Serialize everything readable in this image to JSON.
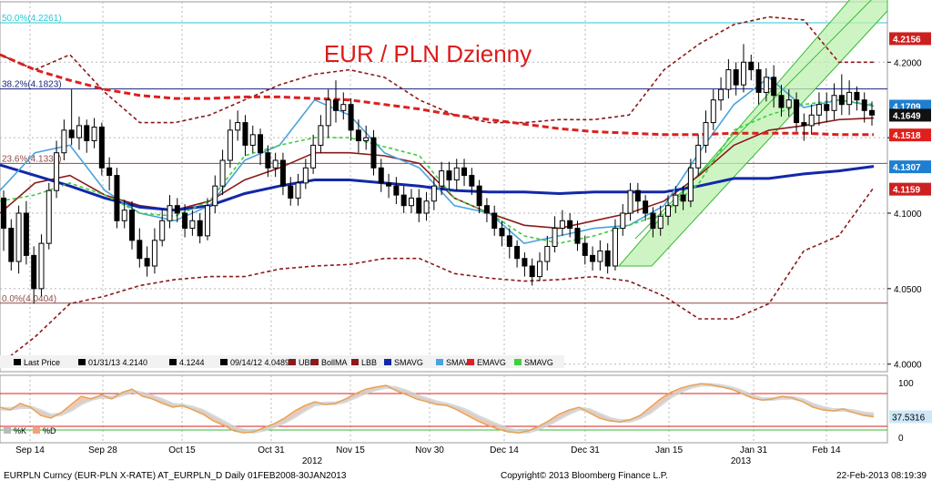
{
  "chart_data": {
    "type": "candlestick",
    "title": "EUR / PLN Dzienny",
    "ylim": [
      3.995,
      4.24
    ],
    "x_ticks": [
      "Sep 14",
      "Sep 28",
      "Oct 15",
      "Oct 31",
      "Nov 15",
      "Nov 30",
      "Dec 14",
      "Dec 31",
      "Jan 15",
      "Jan 31",
      "Feb 14"
    ],
    "year_labels": [
      "2012",
      "2013"
    ],
    "y_ticks": [
      "4.2000",
      "4.1500",
      "4.1000",
      "4.0500",
      "4.0000"
    ],
    "badges": [
      {
        "value": "4.2156",
        "color": "#cc2020"
      },
      {
        "value": "4.1709",
        "color": "#1e7fd0"
      },
      {
        "value": "4.1649",
        "color": "#111111"
      },
      {
        "value": "4.1518",
        "color": "#e0201c"
      },
      {
        "value": "4.1307",
        "color": "#1e7fd0"
      },
      {
        "value": "4.1159",
        "color": "#cc2020"
      }
    ],
    "fib_levels": [
      {
        "label": "50.0%(4.2261)",
        "value": 4.2261,
        "color": "#28c8d8"
      },
      {
        "label": "38.2%(4.1823)",
        "value": 4.1823,
        "color": "#1a237e"
      },
      {
        "label": "23.6%(4.1330)",
        "value": 4.133,
        "color": "#8f4a4a"
      },
      {
        "label": "0.0%(4.0404)",
        "value": 4.0404,
        "color": "#8f4a4a"
      }
    ],
    "candles": [
      [
        4.11,
        4.09,
        4.115,
        4.075
      ],
      [
        4.09,
        4.068,
        4.096,
        4.062
      ],
      [
        4.068,
        4.1,
        4.105,
        4.06
      ],
      [
        4.1,
        4.072,
        4.108,
        4.066
      ],
      [
        4.072,
        4.05,
        4.078,
        4.04
      ],
      [
        4.05,
        4.08,
        4.086,
        4.045
      ],
      [
        4.08,
        4.115,
        4.12,
        4.076
      ],
      [
        4.115,
        4.14,
        4.148,
        4.11
      ],
      [
        4.14,
        4.155,
        4.162,
        4.135
      ],
      [
        4.155,
        4.15,
        4.182,
        4.145
      ],
      [
        4.15,
        4.158,
        4.164,
        4.142
      ],
      [
        4.158,
        4.148,
        4.162,
        4.14
      ],
      [
        4.148,
        4.157,
        4.163,
        4.143
      ],
      [
        4.157,
        4.13,
        4.16,
        4.125
      ],
      [
        4.13,
        4.125,
        4.137,
        4.115
      ],
      [
        4.125,
        4.095,
        4.13,
        4.09
      ],
      [
        4.095,
        4.102,
        4.109,
        4.09
      ],
      [
        4.102,
        4.082,
        4.108,
        4.076
      ],
      [
        4.082,
        4.07,
        4.09,
        4.064
      ],
      [
        4.07,
        4.065,
        4.078,
        4.058
      ],
      [
        4.065,
        4.082,
        4.09,
        4.06
      ],
      [
        4.082,
        4.095,
        4.102,
        4.078
      ],
      [
        4.095,
        4.105,
        4.112,
        4.09
      ],
      [
        4.105,
        4.1,
        4.11,
        4.094
      ],
      [
        4.1,
        4.09,
        4.106,
        4.084
      ],
      [
        4.09,
        4.095,
        4.102,
        4.085
      ],
      [
        4.095,
        4.085,
        4.1,
        4.08
      ],
      [
        4.085,
        4.105,
        4.11,
        4.082
      ],
      [
        4.105,
        4.118,
        4.125,
        4.1
      ],
      [
        4.118,
        4.135,
        4.142,
        4.112
      ],
      [
        4.135,
        4.155,
        4.162,
        4.13
      ],
      [
        4.155,
        4.16,
        4.168,
        4.148
      ],
      [
        4.16,
        4.145,
        4.165,
        4.138
      ],
      [
        4.145,
        4.152,
        4.158,
        4.14
      ],
      [
        4.152,
        4.14,
        4.156,
        4.132
      ],
      [
        4.14,
        4.13,
        4.145,
        4.124
      ],
      [
        4.13,
        4.135,
        4.14,
        4.124
      ],
      [
        4.135,
        4.118,
        4.14,
        4.112
      ],
      [
        4.118,
        4.11,
        4.124,
        4.105
      ],
      [
        4.11,
        4.12,
        4.126,
        4.105
      ],
      [
        4.12,
        4.13,
        4.136,
        4.116
      ],
      [
        4.13,
        4.145,
        4.152,
        4.126
      ],
      [
        4.145,
        4.158,
        4.165,
        4.14
      ],
      [
        4.158,
        4.175,
        4.182,
        4.15
      ],
      [
        4.175,
        4.168,
        4.188,
        4.16
      ],
      [
        4.168,
        4.172,
        4.18,
        4.162
      ],
      [
        4.172,
        4.155,
        4.176,
        4.148
      ],
      [
        4.155,
        4.148,
        4.162,
        4.14
      ],
      [
        4.148,
        4.15,
        4.158,
        4.142
      ],
      [
        4.15,
        4.13,
        4.155,
        4.125
      ],
      [
        4.13,
        4.12,
        4.136,
        4.114
      ],
      [
        4.12,
        4.118,
        4.126,
        4.11
      ],
      [
        4.118,
        4.112,
        4.124,
        4.106
      ],
      [
        4.112,
        4.105,
        4.118,
        4.1
      ],
      [
        4.105,
        4.11,
        4.116,
        4.1
      ],
      [
        4.11,
        4.1,
        4.116,
        4.094
      ],
      [
        4.1,
        4.108,
        4.114,
        4.095
      ],
      [
        4.108,
        4.118,
        4.124,
        4.102
      ],
      [
        4.118,
        4.128,
        4.134,
        4.112
      ],
      [
        4.128,
        4.122,
        4.134,
        4.116
      ],
      [
        4.122,
        4.13,
        4.136,
        4.115
      ],
      [
        4.13,
        4.125,
        4.136,
        4.118
      ],
      [
        4.125,
        4.118,
        4.13,
        4.112
      ],
      [
        4.118,
        4.105,
        4.122,
        4.1
      ],
      [
        4.105,
        4.1,
        4.11,
        4.094
      ],
      [
        4.1,
        4.09,
        4.105,
        4.085
      ],
      [
        4.09,
        4.085,
        4.095,
        4.078
      ],
      [
        4.085,
        4.078,
        4.09,
        4.07
      ],
      [
        4.078,
        4.07,
        4.082,
        4.064
      ],
      [
        4.07,
        4.065,
        4.074,
        4.058
      ],
      [
        4.065,
        4.058,
        4.07,
        4.052
      ],
      [
        4.058,
        4.068,
        4.074,
        4.055
      ],
      [
        4.068,
        4.078,
        4.085,
        4.062
      ],
      [
        4.078,
        4.09,
        4.098,
        4.074
      ],
      [
        4.09,
        4.095,
        4.102,
        4.085
      ],
      [
        4.095,
        4.09,
        4.1,
        4.084
      ],
      [
        4.09,
        4.08,
        4.095,
        4.075
      ],
      [
        4.08,
        4.072,
        4.085,
        4.066
      ],
      [
        4.072,
        4.068,
        4.078,
        4.062
      ],
      [
        4.068,
        4.075,
        4.082,
        4.062
      ],
      [
        4.075,
        4.065,
        4.08,
        4.06
      ],
      [
        4.065,
        4.09,
        4.096,
        4.062
      ],
      [
        4.09,
        4.1,
        4.106,
        4.085
      ],
      [
        4.1,
        4.115,
        4.12,
        4.095
      ],
      [
        4.115,
        4.108,
        4.12,
        4.1
      ],
      [
        4.108,
        4.1,
        4.112,
        4.095
      ],
      [
        4.1,
        4.09,
        4.104,
        4.084
      ],
      [
        4.09,
        4.098,
        4.105,
        4.085
      ],
      [
        4.098,
        4.105,
        4.112,
        4.092
      ],
      [
        4.105,
        4.112,
        4.118,
        4.1
      ],
      [
        4.112,
        4.108,
        4.118,
        4.102
      ],
      [
        4.108,
        4.13,
        4.136,
        4.104
      ],
      [
        4.13,
        4.145,
        4.152,
        4.125
      ],
      [
        4.145,
        4.16,
        4.168,
        4.14
      ],
      [
        4.16,
        4.175,
        4.182,
        4.155
      ],
      [
        4.175,
        4.182,
        4.19,
        4.168
      ],
      [
        4.182,
        4.195,
        4.202,
        4.176
      ],
      [
        4.195,
        4.185,
        4.2,
        4.178
      ],
      [
        4.185,
        4.2,
        4.212,
        4.18
      ],
      [
        4.2,
        4.195,
        4.205,
        4.188
      ],
      [
        4.195,
        4.18,
        4.2,
        4.172
      ],
      [
        4.18,
        4.19,
        4.196,
        4.174
      ],
      [
        4.19,
        4.178,
        4.198,
        4.17
      ],
      [
        4.178,
        4.17,
        4.185,
        4.164
      ],
      [
        4.17,
        4.175,
        4.182,
        4.164
      ],
      [
        4.175,
        4.16,
        4.18,
        4.154
      ],
      [
        4.16,
        4.158,
        4.166,
        4.148
      ],
      [
        4.158,
        4.165,
        4.172,
        4.152
      ],
      [
        4.165,
        4.172,
        4.18,
        4.158
      ],
      [
        4.172,
        4.168,
        4.18,
        4.16
      ],
      [
        4.168,
        4.178,
        4.186,
        4.162
      ],
      [
        4.178,
        4.172,
        4.192,
        4.165
      ],
      [
        4.172,
        4.18,
        4.188,
        4.165
      ],
      [
        4.18,
        4.175,
        4.184,
        4.168
      ],
      [
        4.175,
        4.168,
        4.18,
        4.16
      ],
      [
        4.168,
        4.165,
        4.174,
        4.158
      ]
    ],
    "series": [
      {
        "name": "UBB",
        "color": "#8b1a1a",
        "style": "dashed",
        "values": [
          4.205,
          4.195,
          4.205,
          4.18,
          4.16,
          4.16,
          4.165,
          4.175,
          4.185,
          4.192,
          4.195,
          4.19,
          4.175,
          4.165,
          4.16,
          4.16,
          4.162,
          4.162,
          4.165,
          4.195,
          4.212,
          4.225,
          4.23,
          4.228,
          4.2,
          4.2
        ]
      },
      {
        "name": "BollMA",
        "color": "#8b1a1a",
        "style": "solid",
        "values": [
          4.1,
          4.12,
          4.125,
          4.112,
          4.105,
          4.102,
          4.108,
          4.122,
          4.13,
          4.14,
          4.14,
          4.138,
          4.133,
          4.11,
          4.1,
          4.092,
          4.09,
          4.095,
          4.1,
          4.108,
          4.125,
          4.145,
          4.155,
          4.158,
          4.162,
          4.163
        ]
      },
      {
        "name": "LBB",
        "color": "#8b1a1a",
        "style": "dashed",
        "values": [
          4.0,
          4.018,
          4.04,
          4.045,
          4.052,
          4.056,
          4.058,
          4.058,
          4.063,
          4.065,
          4.066,
          4.07,
          4.07,
          4.06,
          4.057,
          4.055,
          4.056,
          4.058,
          4.055,
          4.045,
          4.03,
          4.03,
          4.04,
          4.075,
          4.085,
          4.117
        ]
      },
      {
        "name": "SMAVG",
        "color": "#1228a8",
        "style": "solid",
        "values": [
          4.132,
          4.125,
          4.118,
          4.11,
          4.104,
          4.102,
          4.105,
          4.113,
          4.118,
          4.122,
          4.122,
          4.12,
          4.118,
          4.115,
          4.114,
          4.114,
          4.113,
          4.114,
          4.114,
          4.114,
          4.118,
          4.123,
          4.123,
          4.126,
          4.128,
          4.131
        ]
      },
      {
        "name": "SMAVG",
        "color": "#4aa3df",
        "style": "solid",
        "values": [
          4.115,
          4.14,
          4.145,
          4.115,
          4.1,
          4.095,
          4.105,
          4.135,
          4.145,
          4.175,
          4.165,
          4.14,
          4.13,
          4.105,
          4.1,
          4.08,
          4.085,
          4.09,
          4.092,
          4.105,
          4.14,
          4.172,
          4.19,
          4.17,
          4.175,
          4.171
        ]
      },
      {
        "name": "EMAVG",
        "color": "#dd1f1f",
        "style": "dashed",
        "values": [
          4.205,
          4.195,
          4.188,
          4.182,
          4.178,
          4.176,
          4.176,
          4.177,
          4.177,
          4.176,
          4.175,
          4.172,
          4.169,
          4.165,
          4.162,
          4.159,
          4.156,
          4.154,
          4.153,
          4.152,
          4.152,
          4.153,
          4.153,
          4.153,
          4.152,
          4.152
        ]
      },
      {
        "name": "SMAVG",
        "color": "#3ecf3e",
        "style": "dashed",
        "values": [
          4.108,
          4.112,
          4.12,
          4.112,
          4.1,
          4.098,
          4.108,
          4.138,
          4.145,
          4.15,
          4.15,
          4.144,
          4.138,
          4.11,
          4.1,
          4.085,
          4.08,
          4.085,
          4.092,
          4.1,
          4.12,
          4.155,
          4.165,
          4.172,
          4.175,
          4.172
        ]
      }
    ],
    "channel": {
      "lower_start": [
        4.058,
        4.058
      ],
      "lower_end": [
        4.2,
        4.2
      ]
    },
    "legend": [
      "Last Price",
      "01/31/13 4.2140",
      "4.1244",
      "09/14/12 4.0489",
      "UBB",
      "BollMA",
      "LBB",
      "SMAVG",
      "SMAVG",
      "EMAVG",
      "SMAVG"
    ],
    "oscillator": {
      "y_ticks": [
        "100",
        "0"
      ],
      "badge": "37.5316",
      "legend": [
        "%K",
        "%D"
      ],
      "k_values": [
        55,
        50,
        62,
        55,
        40,
        35,
        45,
        60,
        75,
        70,
        78,
        70,
        82,
        88,
        75,
        70,
        62,
        55,
        58,
        50,
        42,
        30,
        22,
        12,
        8,
        10,
        18,
        25,
        35,
        48,
        58,
        65,
        60,
        62,
        70,
        80,
        88,
        92,
        95,
        85,
        78,
        70,
        65,
        60,
        58,
        50,
        40,
        30,
        22,
        15,
        10,
        8,
        12,
        20,
        30,
        42,
        50,
        55,
        45,
        35,
        30,
        28,
        32,
        40,
        55,
        70,
        82,
        90,
        95,
        98,
        96,
        92,
        88,
        80,
        72,
        68,
        70,
        75,
        72,
        65,
        55,
        50,
        48,
        52,
        45,
        40,
        37.5
      ],
      "d_values": [
        52,
        52,
        55,
        55,
        48,
        40,
        42,
        50,
        62,
        70,
        74,
        73,
        78,
        84,
        80,
        75,
        68,
        60,
        58,
        54,
        48,
        38,
        28,
        18,
        12,
        10,
        14,
        20,
        28,
        38,
        50,
        60,
        62,
        62,
        66,
        74,
        82,
        88,
        92,
        90,
        84,
        76,
        70,
        64,
        60,
        55,
        48,
        38,
        30,
        22,
        15,
        10,
        10,
        16,
        24,
        34,
        44,
        52,
        50,
        42,
        34,
        30,
        30,
        36,
        46,
        60,
        74,
        84,
        92,
        96,
        96,
        94,
        90,
        84,
        76,
        70,
        70,
        72,
        72,
        68,
        60,
        54,
        50,
        50,
        48,
        44,
        42
      ]
    }
  },
  "footer": {
    "left": "EURPLN Curncy (EUR-PLN X-RATE) AT_EURPLN_D  Daily 01FEB2008-30JAN2013",
    "center": "Copyright© 2013 Bloomberg Finance L.P.",
    "right": "22-Feb-2013 08:19:39"
  }
}
